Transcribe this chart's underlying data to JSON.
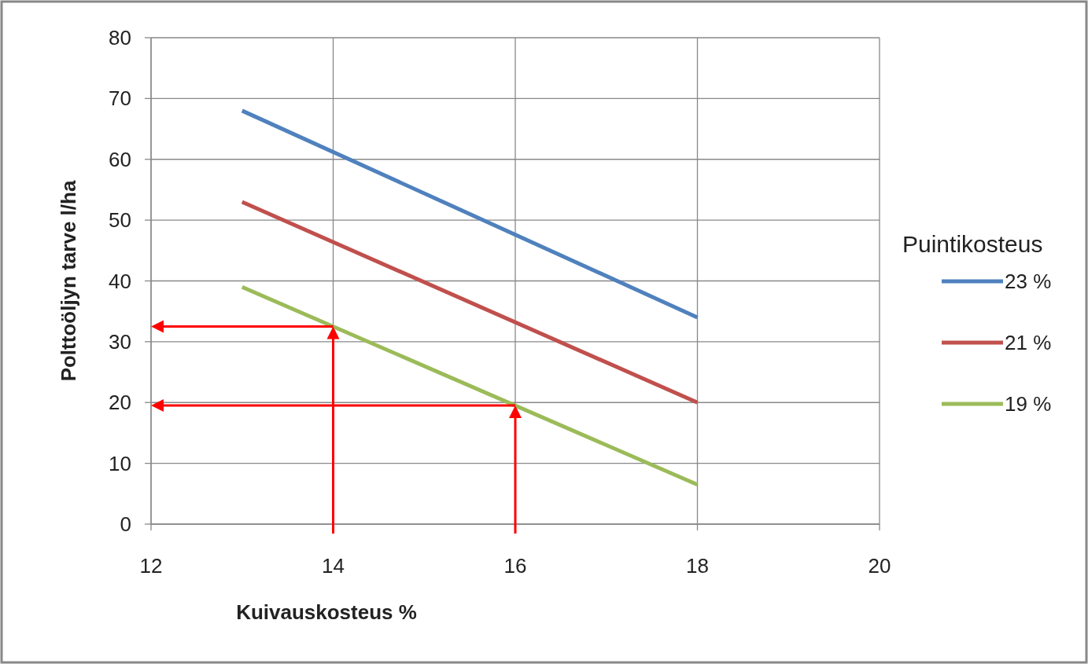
{
  "chart_data": {
    "type": "line",
    "xlabel": "Kuivauskosteus %",
    "ylabel": "Polttoöljyn tarve l/ha",
    "legend_title": "Puintikosteus",
    "x": [
      13,
      18
    ],
    "series": [
      {
        "name": "23 %",
        "color": "#4f81bd",
        "values": [
          68,
          34
        ]
      },
      {
        "name": "21 %",
        "color": "#c0504d",
        "values": [
          53,
          20
        ]
      },
      {
        "name": "19 %",
        "color": "#9bbb59",
        "values": [
          39,
          6.5
        ]
      }
    ],
    "xlim": [
      12,
      20
    ],
    "xticks": [
      12,
      14,
      16,
      18,
      20
    ],
    "ylim": [
      0,
      80
    ],
    "yticks": [
      0,
      10,
      20,
      30,
      40,
      50,
      60,
      70,
      80
    ],
    "grid": true,
    "legend": "right",
    "marker": "none",
    "line_style": "solid"
  }
}
